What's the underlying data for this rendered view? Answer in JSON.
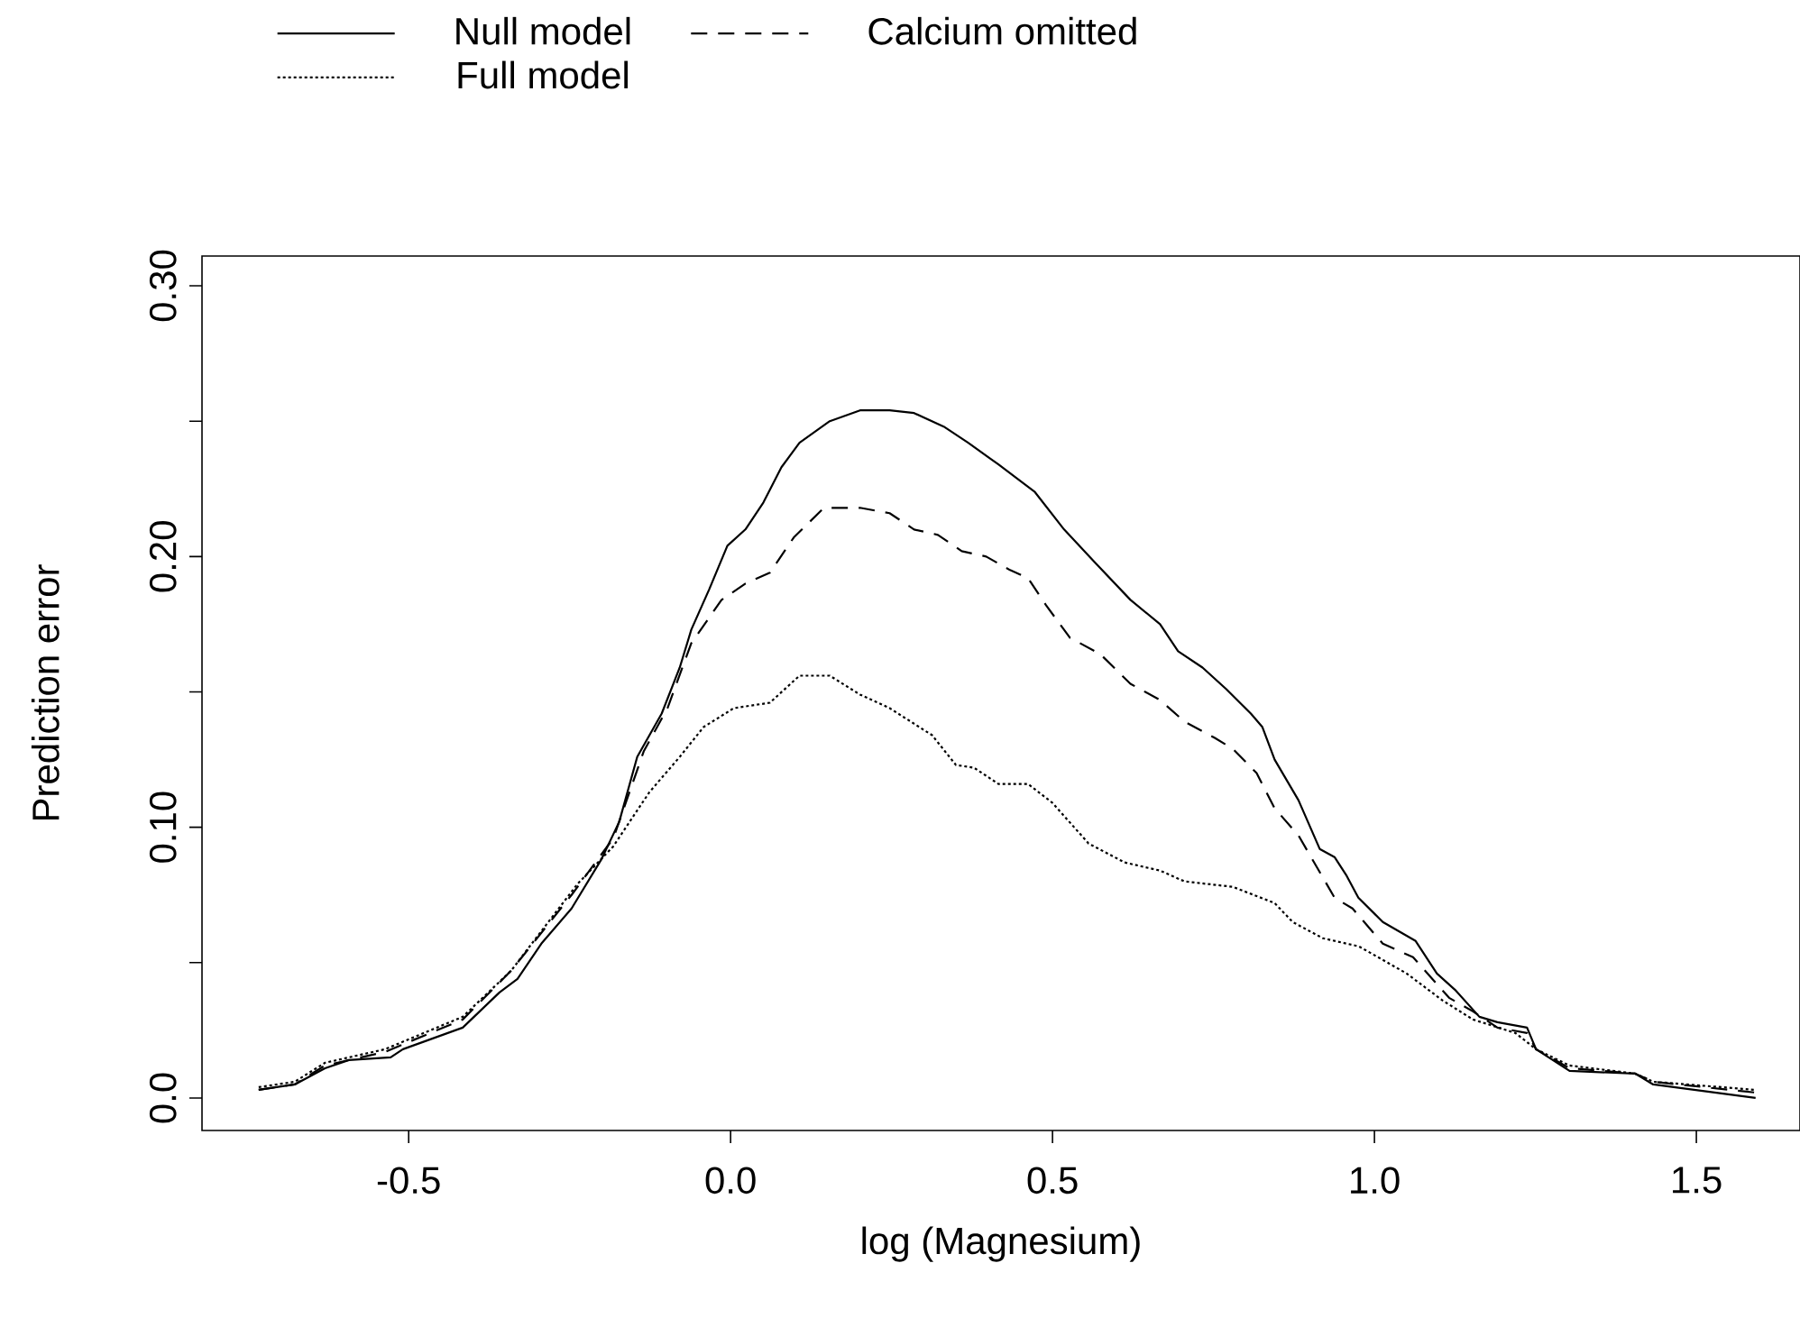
{
  "chart_data": {
    "type": "line",
    "xlabel": "log (Magnesium)",
    "ylabel": "Prediction error",
    "xlim": [
      -0.821,
      1.661
    ],
    "ylim": [
      -0.012,
      0.311
    ],
    "xticks": [
      {
        "value": -0.5,
        "label": "-0.5"
      },
      {
        "value": 0.0,
        "label": "0.0"
      },
      {
        "value": 0.5,
        "label": "0.5"
      },
      {
        "value": 1.0,
        "label": "1.0"
      },
      {
        "value": 1.5,
        "label": "1.5"
      }
    ],
    "yticks": [
      {
        "value": 0.0,
        "label": "0.0"
      },
      {
        "value": 0.05,
        "label": null
      },
      {
        "value": 0.1,
        "label": "0.10"
      },
      {
        "value": 0.15,
        "label": null
      },
      {
        "value": 0.2,
        "label": "0.20"
      },
      {
        "value": 0.25,
        "label": null
      },
      {
        "value": 0.3,
        "label": "0.30"
      }
    ],
    "legend": "top",
    "grid": false,
    "marker": "none",
    "series": [
      {
        "name": "Null model",
        "color": "#000000",
        "line_style": "solid",
        "x": [
          -0.733,
          -0.677,
          -0.63,
          -0.593,
          -0.528,
          -0.509,
          -0.416,
          -0.359,
          -0.331,
          -0.294,
          -0.247,
          -0.201,
          -0.173,
          -0.145,
          -0.107,
          -0.079,
          -0.061,
          -0.033,
          -0.005,
          0.023,
          0.051,
          0.079,
          0.107,
          0.154,
          0.201,
          0.247,
          0.285,
          0.331,
          0.369,
          0.416,
          0.472,
          0.518,
          0.565,
          0.621,
          0.667,
          0.695,
          0.733,
          0.77,
          0.808,
          0.826,
          0.845,
          0.882,
          0.915,
          0.938,
          0.957,
          0.975,
          1.013,
          1.064,
          1.097,
          1.125,
          1.163,
          1.191,
          1.237,
          1.251,
          1.303,
          1.405,
          1.433,
          1.592
        ],
        "values": [
          0.003,
          0.005,
          0.011,
          0.014,
          0.015,
          0.018,
          0.026,
          0.039,
          0.044,
          0.057,
          0.07,
          0.088,
          0.102,
          0.126,
          0.142,
          0.159,
          0.173,
          0.188,
          0.204,
          0.21,
          0.22,
          0.233,
          0.242,
          0.25,
          0.254,
          0.254,
          0.253,
          0.248,
          0.242,
          0.234,
          0.224,
          0.21,
          0.198,
          0.184,
          0.175,
          0.165,
          0.159,
          0.151,
          0.142,
          0.137,
          0.125,
          0.11,
          0.092,
          0.089,
          0.082,
          0.074,
          0.065,
          0.058,
          0.046,
          0.04,
          0.03,
          0.028,
          0.026,
          0.018,
          0.01,
          0.009,
          0.005,
          0.0
        ]
      },
      {
        "name": "Calcium omitted",
        "color": "#000000",
        "line_style": "dashed",
        "x": [
          -0.733,
          -0.677,
          -0.63,
          -0.537,
          -0.416,
          -0.341,
          -0.247,
          -0.182,
          -0.135,
          -0.098,
          -0.061,
          -0.014,
          0.023,
          0.061,
          0.098,
          0.145,
          0.201,
          0.247,
          0.285,
          0.322,
          0.359,
          0.397,
          0.434,
          0.462,
          0.49,
          0.527,
          0.574,
          0.621,
          0.667,
          0.705,
          0.752,
          0.78,
          0.817,
          0.845,
          0.882,
          0.938,
          0.966,
          1.013,
          1.06,
          1.116,
          1.153,
          1.191,
          1.237,
          1.251,
          1.303,
          1.405,
          1.433,
          1.592
        ],
        "values": [
          0.003,
          0.005,
          0.012,
          0.017,
          0.029,
          0.047,
          0.075,
          0.096,
          0.128,
          0.144,
          0.168,
          0.184,
          0.19,
          0.194,
          0.207,
          0.218,
          0.218,
          0.216,
          0.21,
          0.208,
          0.202,
          0.2,
          0.195,
          0.192,
          0.182,
          0.17,
          0.164,
          0.153,
          0.147,
          0.139,
          0.133,
          0.129,
          0.12,
          0.107,
          0.097,
          0.074,
          0.07,
          0.057,
          0.052,
          0.037,
          0.032,
          0.026,
          0.024,
          0.018,
          0.011,
          0.009,
          0.006,
          0.002
        ]
      },
      {
        "name": "Full model",
        "color": "#000000",
        "line_style": "dotted",
        "x": [
          -0.733,
          -0.677,
          -0.63,
          -0.537,
          -0.416,
          -0.341,
          -0.238,
          -0.182,
          -0.126,
          -0.079,
          -0.042,
          0.005,
          0.061,
          0.107,
          0.154,
          0.201,
          0.247,
          0.313,
          0.35,
          0.378,
          0.416,
          0.462,
          0.5,
          0.556,
          0.612,
          0.667,
          0.705,
          0.78,
          0.845,
          0.873,
          0.92,
          0.976,
          1.05,
          1.106,
          1.153,
          1.219,
          1.251,
          1.303,
          1.405,
          1.433,
          1.592
        ],
        "values": [
          0.004,
          0.006,
          0.013,
          0.018,
          0.03,
          0.047,
          0.079,
          0.093,
          0.113,
          0.126,
          0.137,
          0.144,
          0.146,
          0.156,
          0.156,
          0.149,
          0.144,
          0.134,
          0.123,
          0.122,
          0.116,
          0.116,
          0.109,
          0.094,
          0.087,
          0.084,
          0.08,
          0.078,
          0.072,
          0.065,
          0.059,
          0.056,
          0.046,
          0.036,
          0.029,
          0.024,
          0.018,
          0.012,
          0.009,
          0.006,
          0.003
        ]
      }
    ]
  }
}
